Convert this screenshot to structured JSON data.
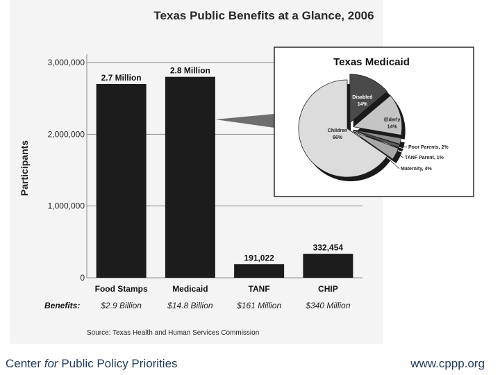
{
  "chart_data": [
    {
      "type": "bar",
      "title": "Texas Public Benefits at a Glance, 2006",
      "ylabel": "Participants",
      "ylim": [
        0,
        3000000
      ],
      "yticks": [
        0,
        1000000,
        2000000,
        3000000
      ],
      "ytick_labels": [
        "0",
        "1,000,000",
        "2,000,000",
        "3,000,000"
      ],
      "categories": [
        "Food Stamps",
        "Medicaid",
        "TANF",
        "CHIP"
      ],
      "values": [
        2700000,
        2800000,
        191022,
        332454
      ],
      "data_labels": [
        "2.7 Million",
        "2.8 Million",
        "191,022",
        "332,454"
      ],
      "benefits_label": "Benefits:",
      "benefits": [
        "$2.9 Billion",
        "$14.8 Billion",
        "$161 Million",
        "$340 Million"
      ],
      "source": "Source: Texas Health and Human Services Commission",
      "grid": true,
      "bar_color": "#1c1c1c"
    },
    {
      "type": "pie",
      "title": "Texas Medicaid",
      "slices": [
        {
          "label": "Disabled",
          "value": 14,
          "text": "14%",
          "color": "#4a4a4a"
        },
        {
          "label": "Elderly",
          "value": 14,
          "text": "14%",
          "color": "#c4c4c4"
        },
        {
          "label": "Poor Parents",
          "value": 2,
          "text": "Poor Parents, 2%",
          "color": "#8c8c8c"
        },
        {
          "label": "TANF Parent",
          "value": 1,
          "text": "TANF Parent, 1%",
          "color": "#5c5c5c"
        },
        {
          "label": "Maternity",
          "value": 4,
          "text": "Maternity, 4%",
          "color": "#a8a8a8"
        },
        {
          "label": "Children",
          "value": 66,
          "text": "66%",
          "color": "#dcdcdc"
        }
      ]
    }
  ],
  "footer": {
    "org_before": "Center ",
    "org_italic": "for",
    "org_after": " Public Policy Priorities",
    "url": "www.cppp.org"
  }
}
